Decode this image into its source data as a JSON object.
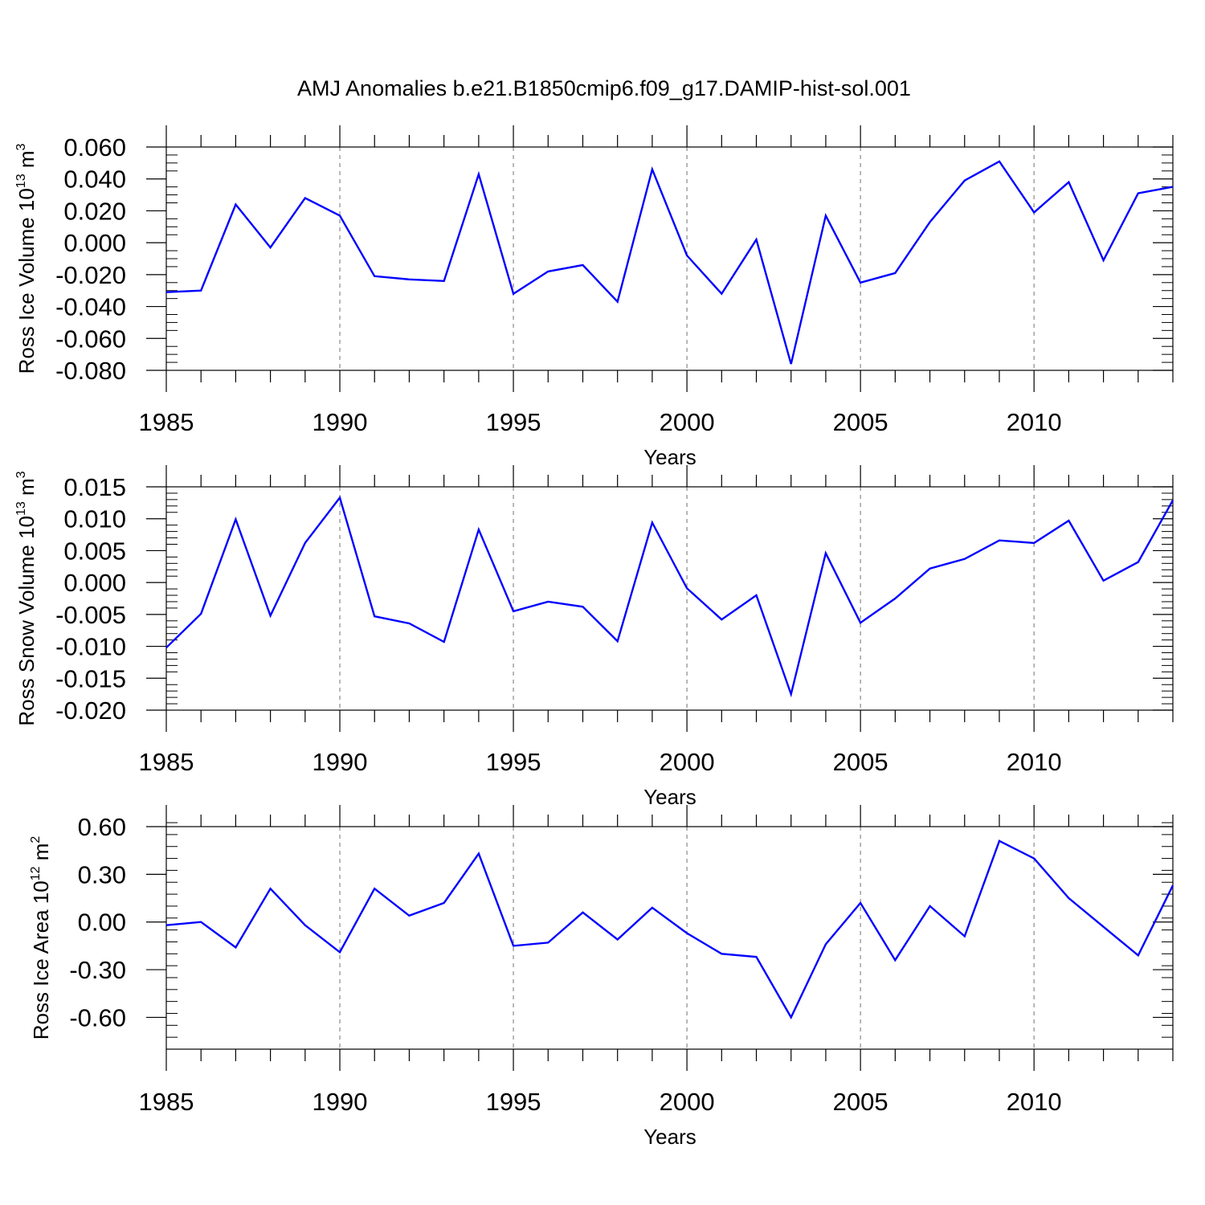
{
  "title": "AMJ Anomalies b.e21.B1850cmip6.f09_g17.DAMIP-hist-sol.001",
  "chart_data": [
    {
      "type": "line",
      "ylabel": "Ross Ice Volume 10",
      "ylabel_exp": "13",
      "ylabel_unit": " m",
      "ylabel_unit_exp": "3",
      "xlabel": "Years",
      "xlim": [
        1985,
        2014
      ],
      "ylim": [
        -0.08,
        0.06
      ],
      "yticks": [
        -0.08,
        -0.06,
        -0.04,
        -0.02,
        0.0,
        0.02,
        0.04,
        0.06
      ],
      "ytick_labels": [
        "-0.080",
        "-0.060",
        "-0.040",
        "-0.020",
        "0.000",
        "0.020",
        "0.040",
        "0.060"
      ],
      "yminor_step": 0.005,
      "xticks": [
        1985,
        1990,
        1995,
        2000,
        2005,
        2010
      ],
      "xtick_labels": [
        "1985",
        "1990",
        "1995",
        "2000",
        "2005",
        "2010"
      ],
      "grid": "vertical dashed at major x ticks",
      "series": [
        {
          "name": "Ross Ice Volume",
          "color": "#0000ff",
          "x": [
            1985,
            1986,
            1987,
            1988,
            1989,
            1990,
            1991,
            1992,
            1993,
            1994,
            1995,
            1996,
            1997,
            1998,
            1999,
            2000,
            2001,
            2002,
            2003,
            2004,
            2005,
            2006,
            2007,
            2008,
            2009,
            2010,
            2011,
            2012,
            2013,
            2014
          ],
          "values": [
            -0.031,
            -0.03,
            0.024,
            -0.003,
            0.028,
            0.017,
            -0.021,
            -0.023,
            -0.024,
            0.043,
            -0.032,
            -0.018,
            -0.014,
            -0.037,
            0.046,
            -0.008,
            -0.032,
            0.002,
            -0.076,
            0.017,
            -0.025,
            -0.019,
            0.013,
            0.039,
            0.051,
            0.019,
            0.038,
            -0.011,
            0.031,
            0.035
          ]
        }
      ]
    },
    {
      "type": "line",
      "ylabel": "Ross Snow Volume 10",
      "ylabel_exp": "13",
      "ylabel_unit": " m",
      "ylabel_unit_exp": "3",
      "xlabel": "Years",
      "xlim": [
        1985,
        2014
      ],
      "ylim": [
        -0.02,
        0.015
      ],
      "yticks": [
        -0.02,
        -0.015,
        -0.01,
        -0.005,
        0.0,
        0.005,
        0.01,
        0.015
      ],
      "ytick_labels": [
        "-0.020",
        "-0.015",
        "-0.010",
        "-0.005",
        "0.000",
        "0.005",
        "0.010",
        "0.015"
      ],
      "yminor_step": 0.001,
      "xticks": [
        1985,
        1990,
        1995,
        2000,
        2005,
        2010
      ],
      "xtick_labels": [
        "1985",
        "1990",
        "1995",
        "2000",
        "2005",
        "2010"
      ],
      "grid": "vertical dashed at major x ticks",
      "series": [
        {
          "name": "Ross Snow Volume",
          "color": "#0000ff",
          "x": [
            1985,
            1986,
            1987,
            1988,
            1989,
            1990,
            1991,
            1992,
            1993,
            1994,
            1995,
            1996,
            1997,
            1998,
            1999,
            2000,
            2001,
            2002,
            2003,
            2004,
            2005,
            2006,
            2007,
            2008,
            2009,
            2010,
            2011,
            2012,
            2013,
            2014
          ],
          "values": [
            -0.0102,
            -0.0049,
            0.0099,
            -0.0052,
            0.0062,
            0.0133,
            -0.0053,
            -0.0064,
            -0.0093,
            0.0083,
            -0.0045,
            -0.003,
            -0.0038,
            -0.0092,
            0.0094,
            -0.0009,
            -0.0058,
            -0.002,
            -0.0175,
            0.0046,
            -0.0063,
            -0.0025,
            0.0022,
            0.0037,
            0.0066,
            0.0062,
            0.0097,
            0.0003,
            0.0032,
            0.0129
          ]
        }
      ]
    },
    {
      "type": "line",
      "ylabel": "Ross Ice Area 10",
      "ylabel_exp": "12",
      "ylabel_unit": " m",
      "ylabel_unit_exp": "2",
      "xlabel": "Years",
      "xlim": [
        1985,
        2014
      ],
      "ylim": [
        -0.8,
        0.6
      ],
      "yticks": [
        -0.6,
        -0.3,
        0.0,
        0.3,
        0.6
      ],
      "ytick_labels": [
        "-0.60",
        "-0.30",
        "0.00",
        "0.30",
        "0.60"
      ],
      "yminor_step": 0.075,
      "xticks": [
        1985,
        1990,
        1995,
        2000,
        2005,
        2010
      ],
      "xtick_labels": [
        "1985",
        "1990",
        "1995",
        "2000",
        "2005",
        "2010"
      ],
      "grid": "vertical dashed at major x ticks",
      "series": [
        {
          "name": "Ross Ice Area",
          "color": "#0000ff",
          "x": [
            1985,
            1986,
            1987,
            1988,
            1989,
            1990,
            1991,
            1992,
            1993,
            1994,
            1995,
            1996,
            1997,
            1998,
            1999,
            2000,
            2001,
            2002,
            2003,
            2004,
            2005,
            2006,
            2007,
            2008,
            2009,
            2010,
            2011,
            2012,
            2013,
            2014
          ],
          "values": [
            -0.02,
            0.0,
            -0.16,
            0.21,
            -0.02,
            -0.19,
            0.21,
            0.04,
            0.12,
            0.43,
            -0.15,
            -0.13,
            0.06,
            -0.11,
            0.09,
            -0.07,
            -0.2,
            -0.22,
            -0.6,
            -0.14,
            0.12,
            -0.24,
            0.1,
            -0.09,
            0.51,
            0.4,
            0.15,
            -0.03,
            -0.21,
            0.23
          ]
        }
      ]
    }
  ]
}
